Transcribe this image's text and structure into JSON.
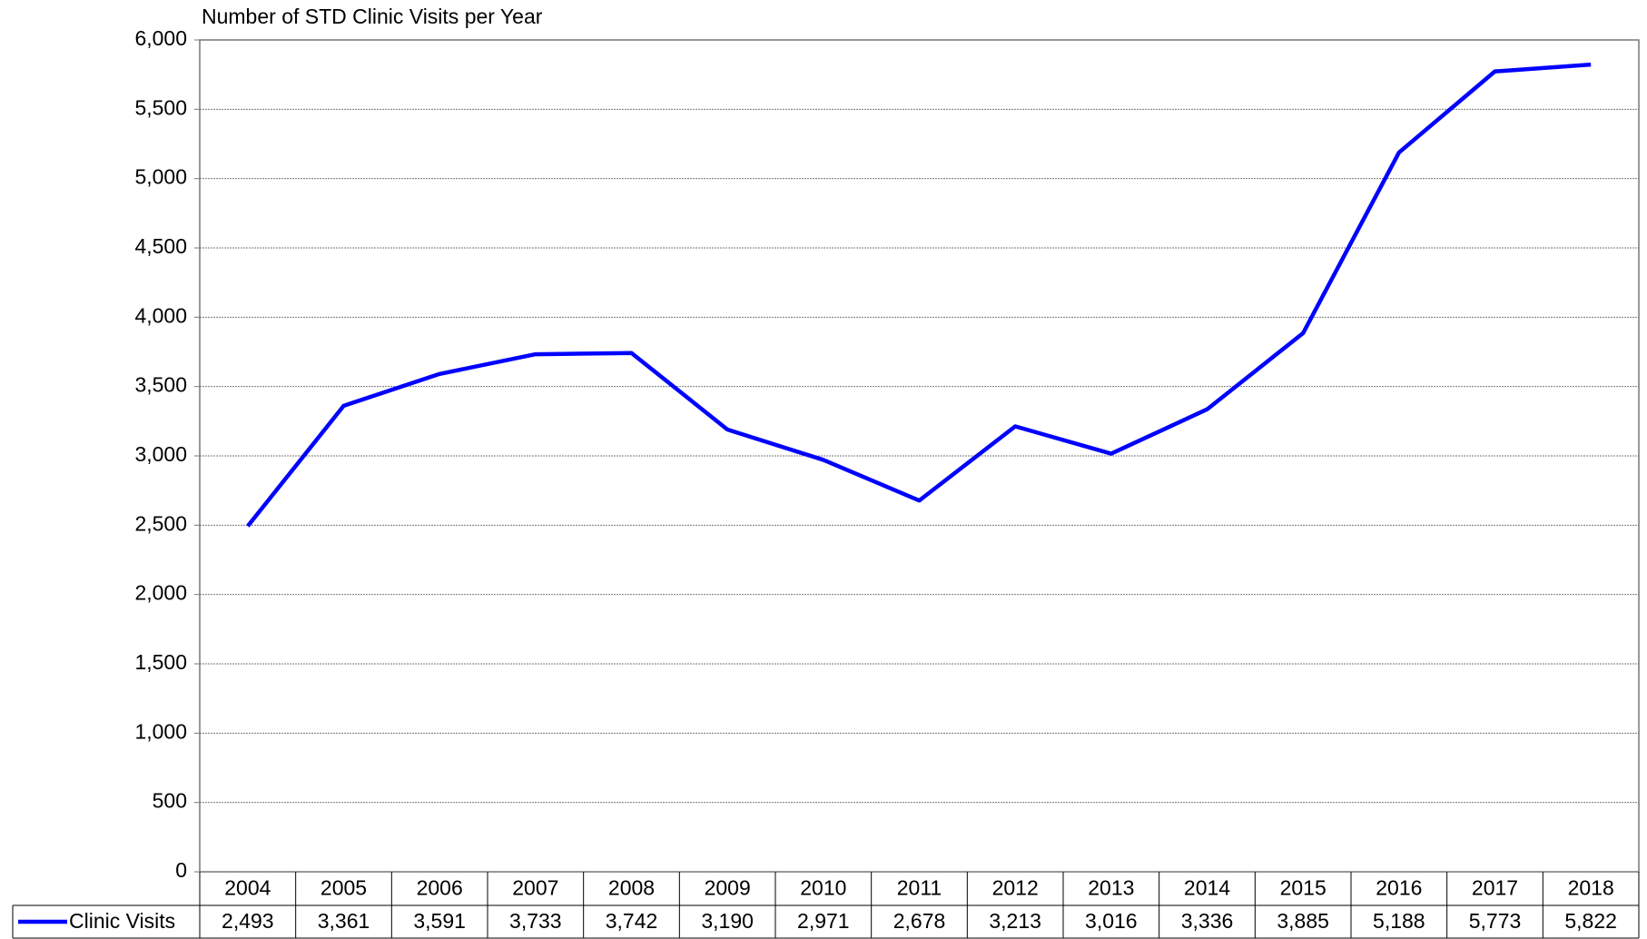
{
  "chart_data": {
    "type": "line",
    "title": "Number of STD Clinic Visits per Year",
    "categories": [
      "2004",
      "2005",
      "2006",
      "2007",
      "2008",
      "2009",
      "2010",
      "2011",
      "2012",
      "2013",
      "2014",
      "2015",
      "2016",
      "2017",
      "2018"
    ],
    "series": [
      {
        "name": "Clinic Visits",
        "color": "#0000ff",
        "values": [
          2493,
          3361,
          3591,
          3733,
          3742,
          3190,
          2971,
          2678,
          3213,
          3016,
          3336,
          3885,
          5188,
          5773,
          5822
        ],
        "value_labels": [
          "2,493",
          "3,361",
          "3,591",
          "3,733",
          "3,742",
          "3,190",
          "2,971",
          "2,678",
          "3,213",
          "3,016",
          "3,336",
          "3,885",
          "5,188",
          "5,773",
          "5,822"
        ]
      }
    ],
    "ylim": [
      0,
      6000
    ],
    "yticks": [
      0,
      500,
      {
        "value": 1000,
        "label": "1,000"
      },
      {
        "value": 1500,
        "label": "1,500"
      },
      {
        "value": 2000,
        "label": "2,000"
      },
      {
        "value": 2500,
        "label": "2,500"
      },
      {
        "value": 3000,
        "label": "3,000"
      },
      {
        "value": 3500,
        "label": "3,500"
      },
      {
        "value": 4000,
        "label": "4,000"
      },
      {
        "value": 4500,
        "label": "4,500"
      },
      {
        "value": 5000,
        "label": "5,000"
      },
      {
        "value": 5500,
        "label": "5,500"
      },
      {
        "value": 6000,
        "label": "6,000"
      }
    ],
    "grid": true
  }
}
